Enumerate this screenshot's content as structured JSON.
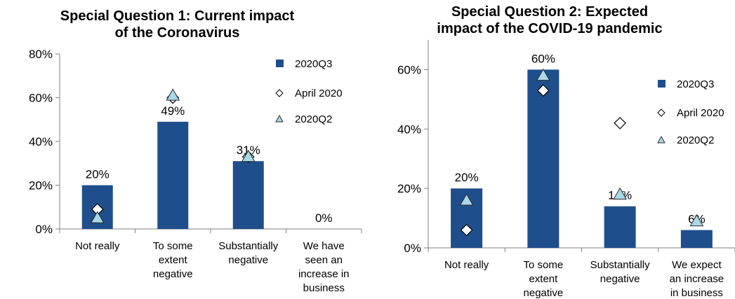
{
  "chart_data": [
    {
      "type": "bar",
      "title": "Special Question 1: Current impact of the Coronavirus",
      "title_lines": [
        "Special Question 1: Current impact",
        "of the Coronavirus"
      ],
      "categories": [
        "Not really",
        "To some extent negative",
        "Substantially negative",
        "We have seen an increase in business"
      ],
      "category_lines": [
        [
          "Not really"
        ],
        [
          "To some",
          "extent",
          "negative"
        ],
        [
          "Substantially",
          "negative"
        ],
        [
          "We have",
          "seen an",
          "increase in",
          "business"
        ]
      ],
      "series": [
        {
          "name": "2020Q3",
          "kind": "bar",
          "marker": "square",
          "color": "#1f4e8c",
          "values": [
            20,
            49,
            31,
            0
          ]
        },
        {
          "name": "April 2020",
          "kind": "marker",
          "marker": "diamond",
          "color": "#ffffff",
          "values": [
            9,
            60,
            33,
            0
          ]
        },
        {
          "name": "2020Q2",
          "kind": "marker",
          "marker": "triangle",
          "color": "#a9d8e8",
          "values": [
            5,
            61,
            33,
            0
          ]
        }
      ],
      "data_labels": [
        "20%",
        "49%",
        "31%",
        "0%"
      ],
      "y_ticks": [
        "0%",
        "20%",
        "40%",
        "60%",
        "80%"
      ],
      "ylim": [
        0,
        80
      ],
      "legend_position": "right",
      "grid": false
    },
    {
      "type": "bar",
      "title": "Special Question 2: Expected impact of the COVID-19 pandemic",
      "title_lines": [
        "Special Question 2: Expected",
        "impact of the COVID-19 pandemic"
      ],
      "categories": [
        "Not really",
        "To some extent negative",
        "Substantially negative",
        "We expect an increase in business"
      ],
      "category_lines": [
        [
          "Not really"
        ],
        [
          "To some",
          "extent",
          "negative"
        ],
        [
          "Substantially",
          "negative"
        ],
        [
          "We expect",
          "an increase",
          "in business"
        ]
      ],
      "series": [
        {
          "name": "2020Q3",
          "kind": "bar",
          "marker": "square",
          "color": "#1f4e8c",
          "values": [
            20,
            60,
            14,
            6
          ]
        },
        {
          "name": "April 2020",
          "kind": "marker",
          "marker": "diamond",
          "color": "#ffffff",
          "values": [
            6,
            53,
            42,
            null
          ]
        },
        {
          "name": "2020Q2",
          "kind": "marker",
          "marker": "triangle",
          "color": "#a9d8e8",
          "values": [
            16,
            58,
            18,
            9
          ]
        }
      ],
      "data_labels": [
        "20%",
        "60%",
        "14%",
        "6%"
      ],
      "y_ticks": [
        "0%",
        "20%",
        "40%",
        "60%"
      ],
      "ylim": [
        0,
        70
      ],
      "legend_position": "right",
      "grid": false
    }
  ]
}
